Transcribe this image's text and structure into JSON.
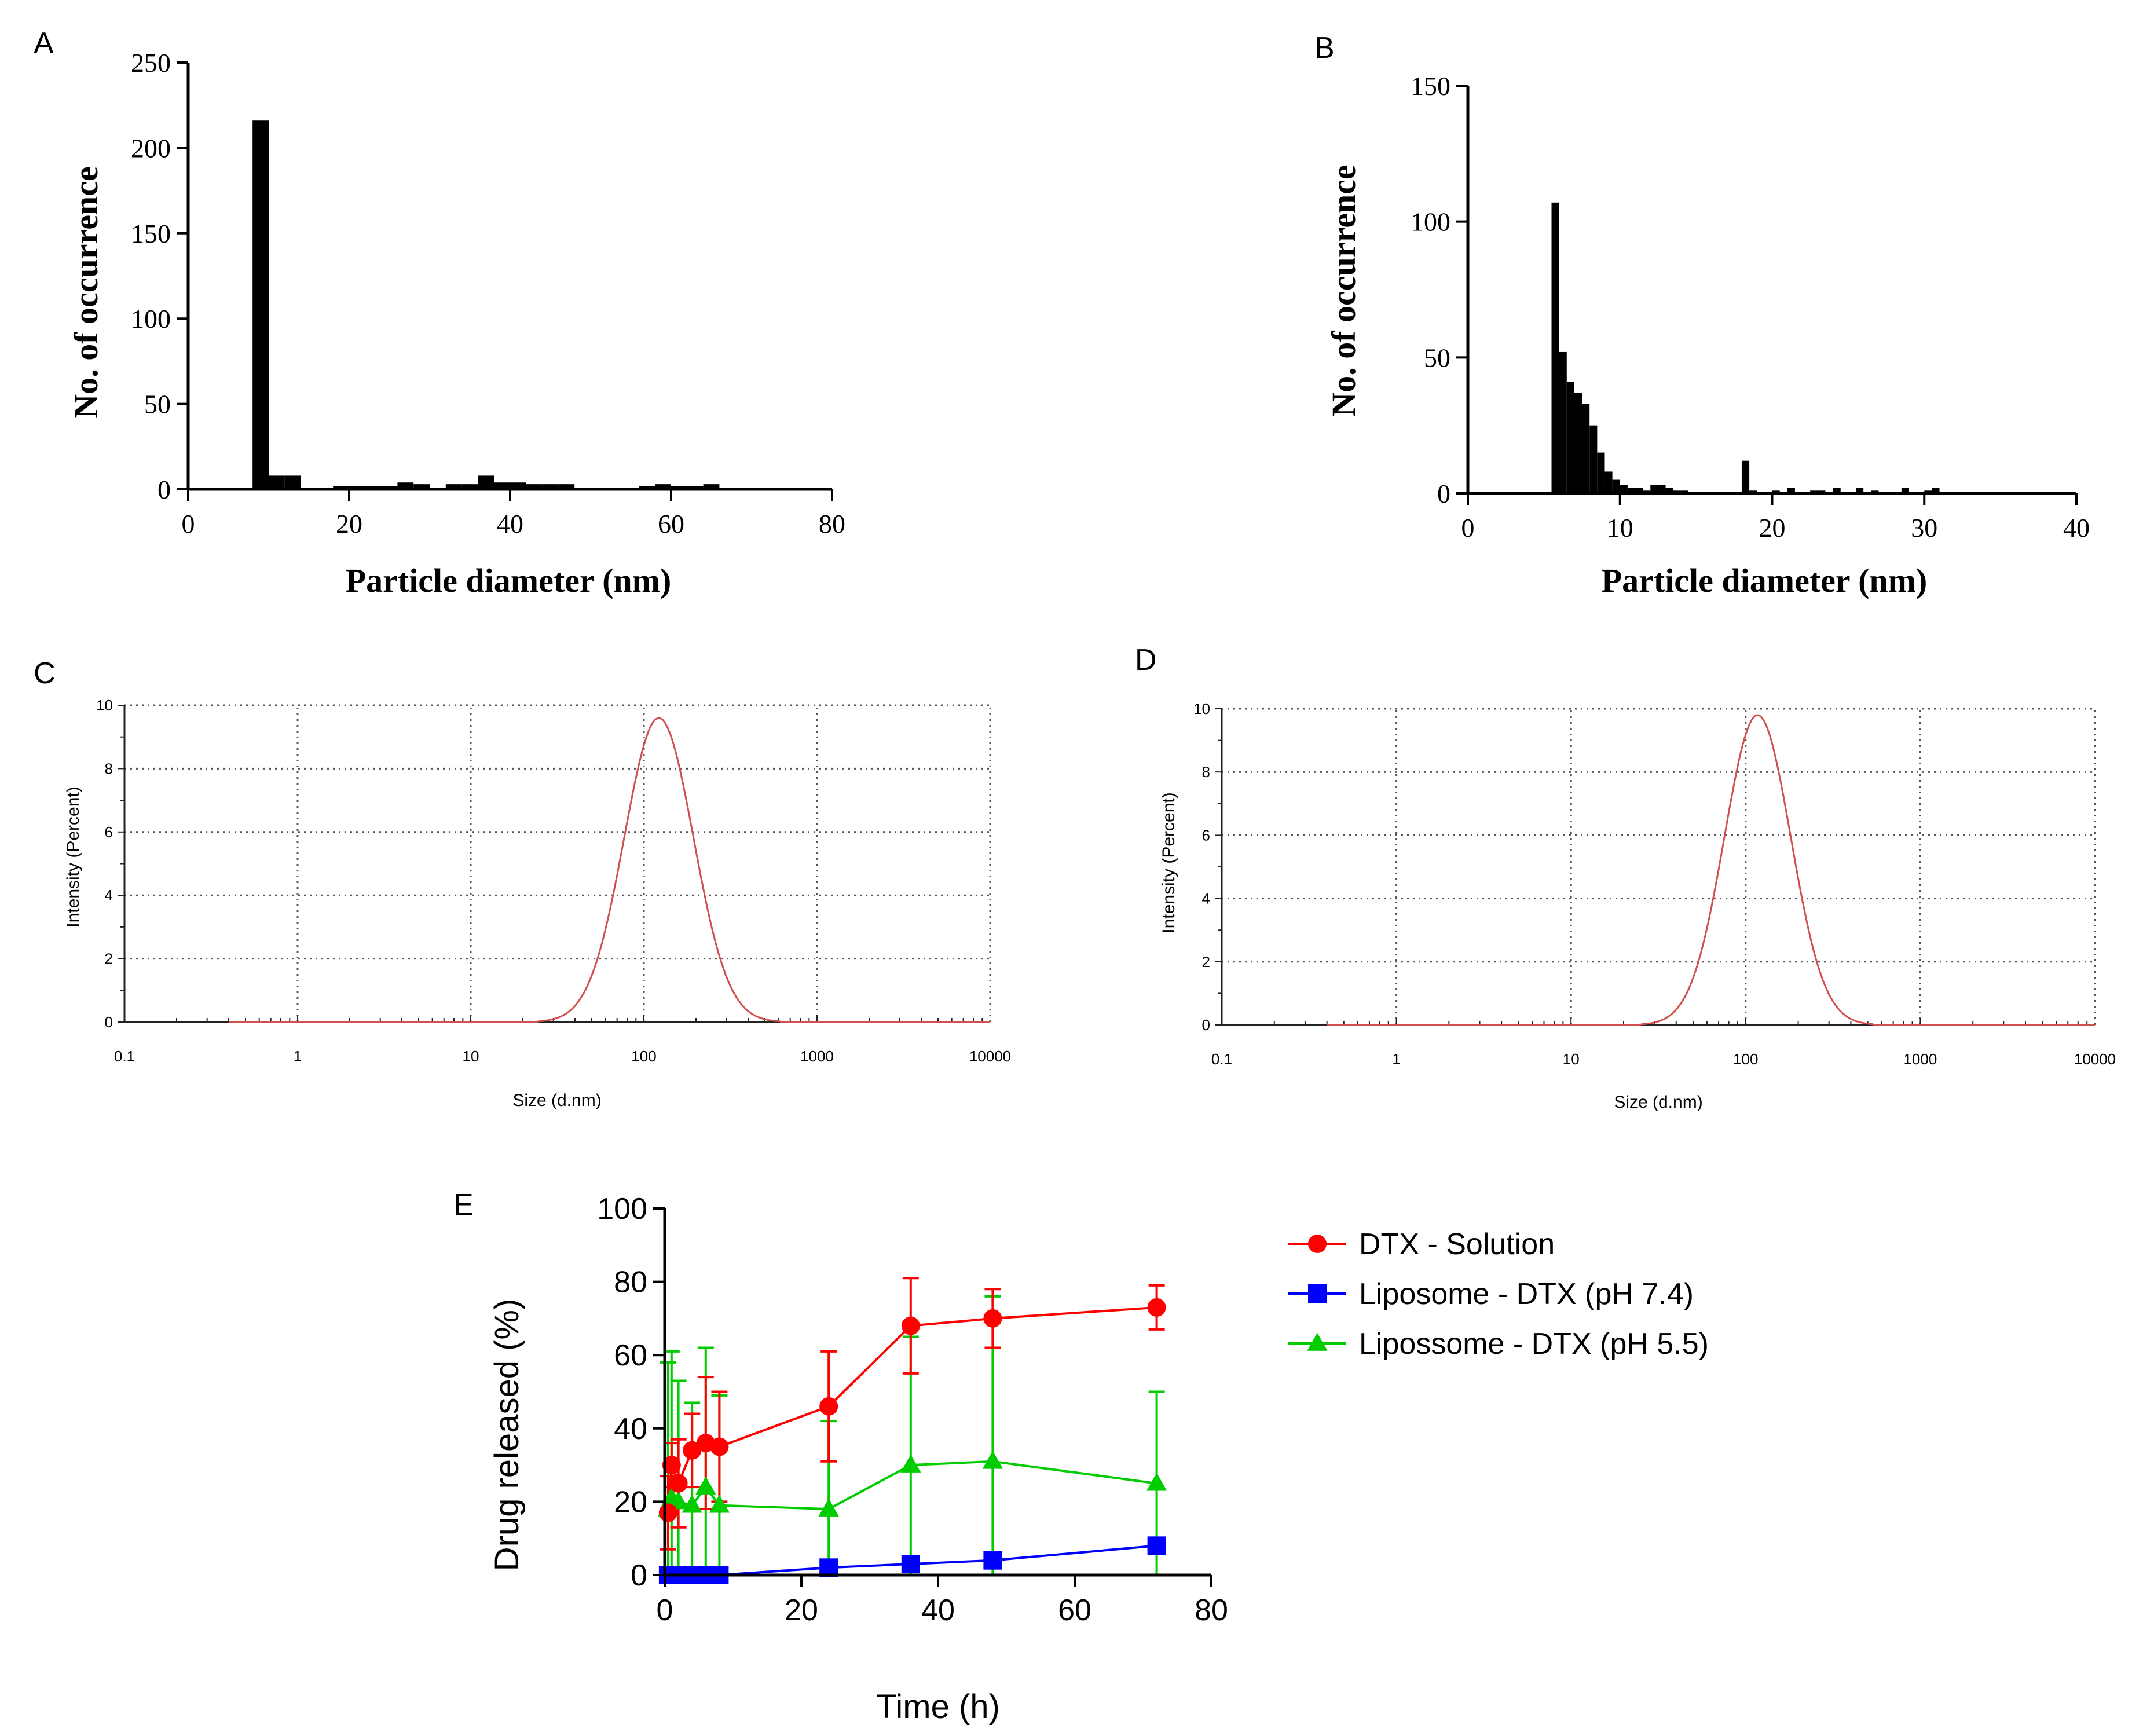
{
  "chart_data": [
    {
      "panel": "A",
      "type": "bar",
      "xlabel": "Particle diameter (nm)",
      "ylabel": "No. of occurrence",
      "xlim": [
        0,
        80
      ],
      "ylim": [
        0,
        250
      ],
      "xticks": [
        0,
        20,
        40,
        60,
        80
      ],
      "yticks": [
        0,
        50,
        100,
        150,
        200,
        250
      ],
      "bin_width": 2,
      "bars": [
        {
          "x": 9,
          "y": 216
        },
        {
          "x": 11,
          "y": 8
        },
        {
          "x": 13,
          "y": 8
        },
        {
          "x": 15,
          "y": 1
        },
        {
          "x": 17,
          "y": 1
        },
        {
          "x": 19,
          "y": 2
        },
        {
          "x": 21,
          "y": 2
        },
        {
          "x": 23,
          "y": 2
        },
        {
          "x": 25,
          "y": 2
        },
        {
          "x": 27,
          "y": 4
        },
        {
          "x": 29,
          "y": 3
        },
        {
          "x": 31,
          "y": 1
        },
        {
          "x": 33,
          "y": 3
        },
        {
          "x": 35,
          "y": 3
        },
        {
          "x": 37,
          "y": 8
        },
        {
          "x": 39,
          "y": 4
        },
        {
          "x": 41,
          "y": 4
        },
        {
          "x": 43,
          "y": 3
        },
        {
          "x": 45,
          "y": 3
        },
        {
          "x": 47,
          "y": 3
        },
        {
          "x": 49,
          "y": 1
        },
        {
          "x": 51,
          "y": 1
        },
        {
          "x": 53,
          "y": 1
        },
        {
          "x": 55,
          "y": 1
        },
        {
          "x": 57,
          "y": 2
        },
        {
          "x": 59,
          "y": 3
        },
        {
          "x": 61,
          "y": 2
        },
        {
          "x": 63,
          "y": 2
        },
        {
          "x": 65,
          "y": 3
        },
        {
          "x": 67,
          "y": 1
        },
        {
          "x": 69,
          "y": 1
        },
        {
          "x": 71,
          "y": 1
        }
      ]
    },
    {
      "panel": "B",
      "type": "bar",
      "xlabel": "Particle diameter (nm)",
      "ylabel": "No. of occurrence",
      "xlim": [
        0,
        40
      ],
      "ylim": [
        0,
        150
      ],
      "xticks": [
        0,
        10,
        20,
        30,
        40
      ],
      "yticks": [
        0,
        50,
        100,
        150
      ],
      "bin_width": 0.5,
      "bars": [
        {
          "x": 5.75,
          "y": 107
        },
        {
          "x": 6.25,
          "y": 52
        },
        {
          "x": 6.75,
          "y": 41
        },
        {
          "x": 7.25,
          "y": 37
        },
        {
          "x": 7.75,
          "y": 33
        },
        {
          "x": 8.25,
          "y": 25
        },
        {
          "x": 8.75,
          "y": 15
        },
        {
          "x": 9.25,
          "y": 8
        },
        {
          "x": 9.75,
          "y": 5
        },
        {
          "x": 10.25,
          "y": 3
        },
        {
          "x": 10.75,
          "y": 2
        },
        {
          "x": 11.25,
          "y": 2
        },
        {
          "x": 11.75,
          "y": 1
        },
        {
          "x": 12.25,
          "y": 3
        },
        {
          "x": 12.75,
          "y": 3
        },
        {
          "x": 13.25,
          "y": 2
        },
        {
          "x": 13.75,
          "y": 1
        },
        {
          "x": 14.25,
          "y": 1
        },
        {
          "x": 18.25,
          "y": 12
        },
        {
          "x": 18.75,
          "y": 1
        },
        {
          "x": 20.25,
          "y": 1
        },
        {
          "x": 21.25,
          "y": 2
        },
        {
          "x": 22.75,
          "y": 1
        },
        {
          "x": 23.25,
          "y": 1
        },
        {
          "x": 24.25,
          "y": 2
        },
        {
          "x": 25.75,
          "y": 2
        },
        {
          "x": 26.75,
          "y": 1
        },
        {
          "x": 28.75,
          "y": 2
        },
        {
          "x": 30.25,
          "y": 1
        },
        {
          "x": 30.75,
          "y": 2
        }
      ]
    },
    {
      "panel": "C",
      "type": "line",
      "xscale": "log",
      "xlabel": "Size (d.nm)",
      "ylabel": "Intensity (Percent)",
      "xlim": [
        0.1,
        10000
      ],
      "ylim": [
        0,
        10
      ],
      "xtick_labels": [
        "0.1",
        "1",
        "10",
        "100",
        "1000",
        "10000"
      ],
      "yticks": [
        0,
        2,
        4,
        6,
        8,
        10
      ],
      "grid": true,
      "series": [
        {
          "name": "Intensity",
          "color": "#d05050",
          "peak_x": 122,
          "peak_y": 9.6,
          "log_sigma": 0.2,
          "x_start": 0.4
        }
      ]
    },
    {
      "panel": "D",
      "type": "line",
      "xscale": "log",
      "xlabel": "Size (d.nm)",
      "ylabel": "Intensity (Percent)",
      "xlim": [
        0.1,
        10000
      ],
      "ylim": [
        0,
        10
      ],
      "xtick_labels": [
        "0.1",
        "1",
        "10",
        "100",
        "1000",
        "10000"
      ],
      "yticks": [
        0,
        2,
        4,
        6,
        8,
        10
      ],
      "grid": true,
      "series": [
        {
          "name": "Intensity",
          "color": "#d05050",
          "peak_x": 117,
          "peak_y": 9.8,
          "log_sigma": 0.19,
          "x_start": 0.4
        }
      ]
    },
    {
      "panel": "E",
      "type": "line",
      "xlabel": "Time (h)",
      "ylabel": "Drug released (%)",
      "xlim": [
        0,
        80
      ],
      "ylim": [
        0,
        100
      ],
      "xticks": [
        0,
        20,
        40,
        60,
        80
      ],
      "yticks": [
        0,
        20,
        40,
        60,
        80,
        100
      ],
      "legend_position": "right",
      "series": [
        {
          "name": "DTX - Solution",
          "color": "#ff0000",
          "marker": "circle",
          "x": [
            0.5,
            1,
            2,
            4,
            6,
            8,
            24,
            36,
            48,
            72
          ],
          "y": [
            17,
            30,
            25,
            34,
            36,
            35,
            46,
            68,
            70,
            73
          ],
          "err": [
            10,
            6,
            12,
            10,
            18,
            15,
            15,
            13,
            8,
            6
          ]
        },
        {
          "name": "Liposome - DTX (pH 7.4)",
          "color": "#0000ff",
          "marker": "square",
          "x": [
            0.5,
            1,
            2,
            4,
            6,
            8,
            24,
            36,
            48,
            72
          ],
          "y": [
            0,
            0,
            0,
            0,
            0,
            0,
            2,
            3,
            4,
            8
          ],
          "err": [
            0,
            0,
            0,
            0,
            0,
            0,
            0,
            0,
            0,
            0
          ]
        },
        {
          "name": "Lipossome - DTX (pH 5.5)",
          "color": "#00cc00",
          "marker": "triangle",
          "x": [
            0.5,
            1,
            2,
            4,
            6,
            8,
            24,
            36,
            48,
            72
          ],
          "y": [
            18,
            21,
            20,
            19,
            24,
            19,
            18,
            30,
            31,
            25
          ],
          "err": [
            40,
            40,
            33,
            28,
            38,
            30,
            24,
            35,
            45,
            25
          ]
        }
      ]
    }
  ]
}
